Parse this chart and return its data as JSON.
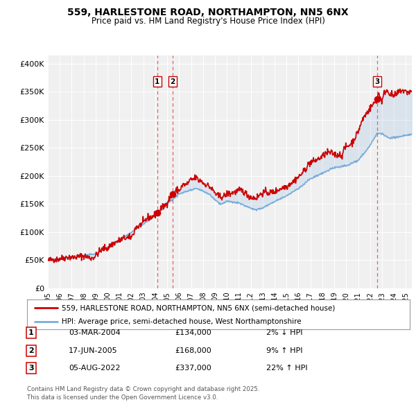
{
  "title1": "559, HARLESTONE ROAD, NORTHAMPTON, NN5 6NX",
  "title2": "Price paid vs. HM Land Registry's House Price Index (HPI)",
  "ylabel_ticks": [
    "£0",
    "£50K",
    "£100K",
    "£150K",
    "£200K",
    "£250K",
    "£300K",
    "£350K",
    "£400K"
  ],
  "ytick_values": [
    0,
    50000,
    100000,
    150000,
    200000,
    250000,
    300000,
    350000,
    400000
  ],
  "ylim": [
    0,
    415000
  ],
  "xlim_start": 1995.0,
  "xlim_end": 2025.5,
  "property_color": "#cc0000",
  "hpi_color": "#7aaddb",
  "legend1": "559, HARLESTONE ROAD, NORTHAMPTON, NN5 6NX (semi-detached house)",
  "legend2": "HPI: Average price, semi-detached house, West Northamptonshire",
  "transactions": [
    {
      "label": "1",
      "date": 2004.17,
      "price": 134000,
      "text_date": "03-MAR-2004",
      "text_price": "£134,000",
      "text_hpi": "2% ↓ HPI"
    },
    {
      "label": "2",
      "date": 2005.46,
      "price": 168000,
      "text_date": "17-JUN-2005",
      "text_price": "£168,000",
      "text_hpi": "9% ↑ HPI"
    },
    {
      "label": "3",
      "date": 2022.59,
      "price": 337000,
      "text_date": "05-AUG-2022",
      "text_price": "£337,000",
      "text_hpi": "22% ↑ HPI"
    }
  ],
  "footnote1": "Contains HM Land Registry data © Crown copyright and database right 2025.",
  "footnote2": "This data is licensed under the Open Government Licence v3.0.",
  "background_color": "white",
  "plot_bg": "#f0f0f0",
  "grid_color": "#ffffff"
}
